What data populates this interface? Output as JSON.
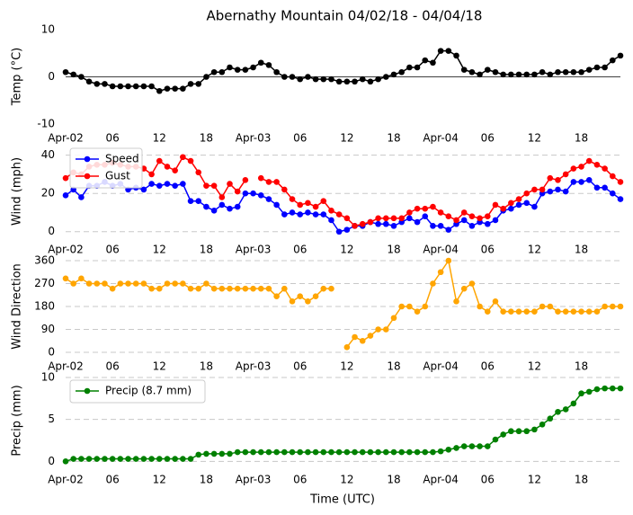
{
  "chart_data": [
    {
      "type": "line",
      "title": "Abernathy Mountain 04/02/18 - 04/04/18",
      "ylabel": "Temp (°C)",
      "x": [
        0,
        1,
        2,
        3,
        4,
        5,
        6,
        7,
        8,
        9,
        10,
        11,
        12,
        13,
        14,
        15,
        16,
        17,
        18,
        19,
        20,
        21,
        22,
        23,
        24,
        25,
        26,
        27,
        28,
        29,
        30,
        31,
        32,
        33,
        34,
        35,
        36,
        37,
        38,
        39,
        40,
        41,
        42,
        43,
        44,
        45,
        46,
        47,
        48,
        49,
        50,
        51,
        52,
        53,
        54,
        55,
        56,
        57,
        58,
        59,
        60,
        61,
        62,
        63,
        64,
        65,
        66,
        67,
        68,
        69,
        70,
        71
      ],
      "xlim": [
        0,
        71
      ],
      "xticks": [
        {
          "value": 0,
          "label": "Apr-02"
        },
        {
          "value": 6,
          "label": "06"
        },
        12,
        18,
        {
          "value": 24,
          "label": "Apr-03"
        },
        {
          "value": 30,
          "label": "06"
        },
        {
          "value": 36,
          "label": "12"
        },
        {
          "value": 42,
          "label": "18"
        },
        {
          "value": 48,
          "label": "Apr-04"
        },
        {
          "value": 54,
          "label": "06"
        },
        {
          "value": 60,
          "label": "12"
        },
        {
          "value": 66,
          "label": "18"
        }
      ],
      "ylim": [
        -10,
        10
      ],
      "yticks": [
        -10,
        0,
        10
      ],
      "grid": false,
      "axhline": 0,
      "series": [
        {
          "name": "Temp",
          "color": "#000000",
          "values": [
            1,
            0.5,
            0,
            -1,
            -1.5,
            -1.5,
            -2,
            -2,
            -2,
            -2,
            -2,
            -2,
            -3,
            -2.5,
            -2.5,
            -2.5,
            -1.5,
            -1.5,
            0,
            1,
            1,
            2,
            1.5,
            1.5,
            2,
            3,
            2.5,
            1,
            0,
            0,
            -0.5,
            0,
            -0.5,
            -0.5,
            -0.5,
            -1,
            -1,
            -1,
            -0.5,
            -1,
            -0.5,
            0,
            0.5,
            1,
            2,
            2,
            3.5,
            3,
            5.5,
            5.5,
            4.5,
            1.5,
            1,
            0.5,
            1.5,
            1,
            0.5,
            0.5,
            0.5,
            0.5,
            0.5,
            1,
            0.5,
            1,
            1,
            1,
            1,
            1.5,
            2,
            2,
            3.5,
            4.5
          ]
        }
      ]
    },
    {
      "type": "line",
      "ylabel": "Wind (mph)",
      "x": [
        0,
        1,
        2,
        3,
        4,
        5,
        6,
        7,
        8,
        9,
        10,
        11,
        12,
        13,
        14,
        15,
        16,
        17,
        18,
        19,
        20,
        21,
        22,
        23,
        24,
        25,
        26,
        27,
        28,
        29,
        30,
        31,
        32,
        33,
        34,
        35,
        36,
        37,
        38,
        39,
        40,
        41,
        42,
        43,
        44,
        45,
        46,
        47,
        48,
        49,
        50,
        51,
        52,
        53,
        54,
        55,
        56,
        57,
        58,
        59,
        60,
        61,
        62,
        63,
        64,
        65,
        66,
        67,
        68,
        69,
        70,
        71
      ],
      "xlim": [
        0,
        71
      ],
      "xticks": [
        {
          "value": 0,
          "label": "Apr-02"
        },
        {
          "value": 6,
          "label": "06"
        },
        12,
        18,
        {
          "value": 24,
          "label": "Apr-03"
        },
        {
          "value": 30,
          "label": "06"
        },
        {
          "value": 36,
          "label": "12"
        },
        {
          "value": 42,
          "label": "18"
        },
        {
          "value": 48,
          "label": "Apr-04"
        },
        {
          "value": 54,
          "label": "06"
        },
        {
          "value": 60,
          "label": "12"
        },
        {
          "value": 66,
          "label": "18"
        }
      ],
      "ylim": [
        -2,
        45
      ],
      "yticks": [
        0,
        20,
        40
      ],
      "grid": true,
      "legend": "upper left",
      "series": [
        {
          "name": "Speed",
          "color": "#0000ff",
          "values": [
            19,
            22,
            18,
            24,
            24,
            26,
            24,
            25,
            22,
            23,
            22,
            25,
            24,
            25,
            24,
            25,
            16,
            16,
            13,
            11,
            14,
            12,
            13,
            20,
            20,
            19,
            17,
            14,
            9,
            10,
            9,
            10,
            9,
            9,
            6,
            0,
            1,
            3,
            3,
            5,
            4,
            4,
            3,
            5,
            7,
            5,
            8,
            3,
            3,
            1,
            4,
            6,
            3,
            5,
            4,
            6,
            11,
            12,
            14,
            15,
            13,
            20,
            21,
            22,
            21,
            26,
            26,
            27,
            23,
            23,
            20,
            17
          ]
        },
        {
          "name": "Gust",
          "color": "#ff0000",
          "values": [
            28,
            31,
            30,
            34,
            35,
            35,
            36,
            35,
            34,
            34,
            33,
            30,
            37,
            34,
            32,
            39,
            37,
            31,
            24,
            24,
            18,
            25,
            21,
            27,
            null,
            28,
            26,
            26,
            22,
            17,
            14,
            15,
            13,
            16,
            11,
            9,
            7,
            3,
            4,
            5,
            7,
            7,
            7,
            7,
            10,
            12,
            12,
            13,
            10,
            8,
            6,
            10,
            8,
            7,
            8,
            14,
            12,
            15,
            17,
            20,
            22,
            22,
            28,
            27,
            30,
            33,
            34,
            37,
            35,
            33,
            29,
            26
          ]
        }
      ]
    },
    {
      "type": "line",
      "ylabel": "Wind Direction",
      "x": [
        0,
        1,
        2,
        3,
        4,
        5,
        6,
        7,
        8,
        9,
        10,
        11,
        12,
        13,
        14,
        15,
        16,
        17,
        18,
        19,
        20,
        21,
        22,
        23,
        24,
        25,
        26,
        27,
        28,
        29,
        30,
        31,
        32,
        33,
        34,
        35,
        36,
        37,
        38,
        39,
        40,
        41,
        42,
        43,
        44,
        45,
        46,
        47,
        48,
        49,
        50,
        51,
        52,
        53,
        54,
        55,
        56,
        57,
        58,
        59,
        60,
        61,
        62,
        63,
        64,
        65,
        66,
        67,
        68,
        69,
        70,
        71
      ],
      "xlim": [
        0,
        71
      ],
      "xticks": [
        {
          "value": 0,
          "label": "Apr-02"
        },
        {
          "value": 6,
          "label": "06"
        },
        12,
        18,
        {
          "value": 24,
          "label": "Apr-03"
        },
        {
          "value": 30,
          "label": "06"
        },
        {
          "value": 36,
          "label": "12"
        },
        {
          "value": 42,
          "label": "18"
        },
        {
          "value": 48,
          "label": "Apr-04"
        },
        {
          "value": 54,
          "label": "06"
        },
        {
          "value": 60,
          "label": "12"
        },
        {
          "value": 66,
          "label": "18"
        }
      ],
      "ylim": [
        0,
        360
      ],
      "yticks": [
        0,
        90,
        180,
        270,
        360
      ],
      "grid": true,
      "series": [
        {
          "name": "Direction",
          "color": "#ffa500",
          "values": [
            290,
            270,
            290,
            270,
            270,
            270,
            250,
            270,
            270,
            270,
            270,
            250,
            250,
            270,
            270,
            270,
            250,
            250,
            270,
            250,
            250,
            250,
            250,
            250,
            250,
            250,
            250,
            220,
            250,
            200,
            220,
            200,
            220,
            250,
            250,
            null,
            20,
            60,
            45,
            65,
            90,
            90,
            135,
            180,
            180,
            160,
            180,
            270,
            315,
            360,
            200,
            250,
            270,
            180,
            160,
            200,
            160,
            160,
            160,
            160,
            160,
            180,
            180,
            160,
            160,
            160,
            160,
            160,
            160,
            180,
            180,
            180
          ]
        }
      ]
    },
    {
      "type": "line",
      "ylabel": "Precip (mm)",
      "xlabel": "Time (UTC)",
      "x": [
        0,
        1,
        2,
        3,
        4,
        5,
        6,
        7,
        8,
        9,
        10,
        11,
        12,
        13,
        14,
        15,
        16,
        17,
        18,
        19,
        20,
        21,
        22,
        23,
        24,
        25,
        26,
        27,
        28,
        29,
        30,
        31,
        32,
        33,
        34,
        35,
        36,
        37,
        38,
        39,
        40,
        41,
        42,
        43,
        44,
        45,
        46,
        47,
        48,
        49,
        50,
        51,
        52,
        53,
        54,
        55,
        56,
        57,
        58,
        59,
        60,
        61,
        62,
        63,
        64,
        65,
        66,
        67,
        68,
        69,
        70,
        71
      ],
      "xlim": [
        0,
        71
      ],
      "xticks": [
        {
          "value": 0,
          "label": "Apr-02"
        },
        {
          "value": 6,
          "label": "06"
        },
        12,
        18,
        {
          "value": 24,
          "label": "Apr-03"
        },
        {
          "value": 30,
          "label": "06"
        },
        {
          "value": 36,
          "label": "12"
        },
        {
          "value": 42,
          "label": "18"
        },
        {
          "value": 48,
          "label": "Apr-04"
        },
        {
          "value": 54,
          "label": "06"
        },
        {
          "value": 60,
          "label": "12"
        },
        {
          "value": 66,
          "label": "18"
        }
      ],
      "ylim": [
        -0.5,
        10
      ],
      "yticks": [
        0,
        5,
        10
      ],
      "grid": true,
      "legend": "upper left",
      "series": [
        {
          "name": "Precip (8.7 mm)",
          "color": "#008000",
          "values": [
            0,
            0.3,
            0.3,
            0.3,
            0.3,
            0.3,
            0.3,
            0.3,
            0.3,
            0.3,
            0.3,
            0.3,
            0.3,
            0.3,
            0.3,
            0.3,
            0.3,
            0.8,
            0.9,
            0.9,
            0.9,
            0.9,
            1.1,
            1.1,
            1.1,
            1.1,
            1.1,
            1.1,
            1.1,
            1.1,
            1.1,
            1.1,
            1.1,
            1.1,
            1.1,
            1.1,
            1.1,
            1.1,
            1.1,
            1.1,
            1.1,
            1.1,
            1.1,
            1.1,
            1.1,
            1.1,
            1.1,
            1.1,
            1.2,
            1.4,
            1.6,
            1.8,
            1.8,
            1.8,
            1.8,
            2.6,
            3.2,
            3.6,
            3.6,
            3.6,
            3.8,
            4.4,
            5.1,
            5.9,
            6.2,
            6.9,
            8.1,
            8.3,
            8.6,
            8.7,
            8.7,
            8.7
          ]
        }
      ]
    }
  ]
}
